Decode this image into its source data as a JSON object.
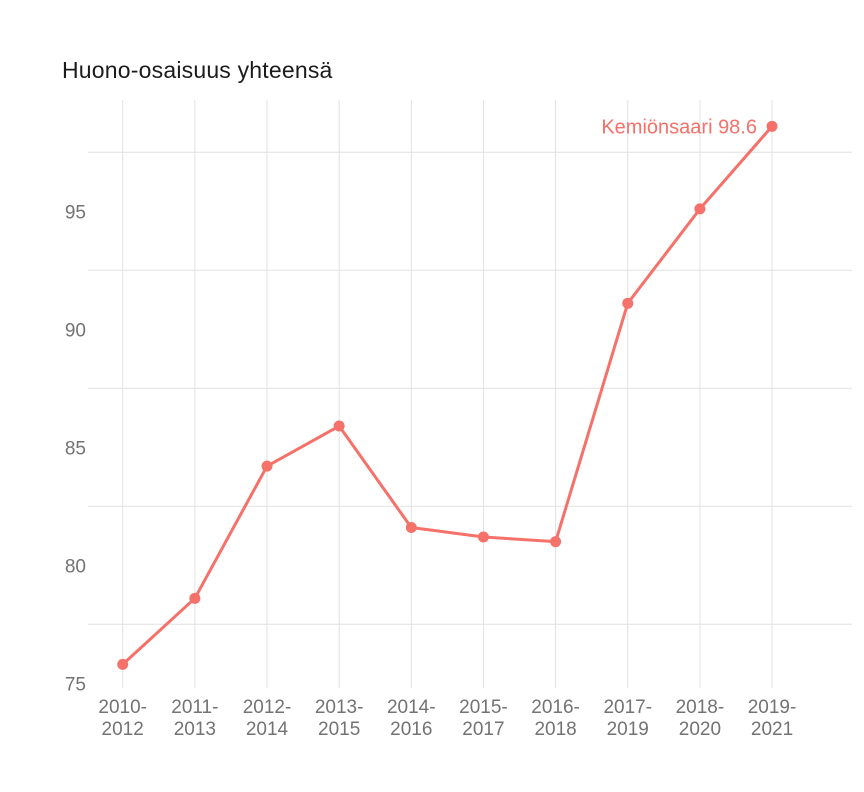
{
  "page": {
    "background": "#ffffff"
  },
  "chart_data": {
    "type": "line",
    "title": "Huono-osaisuus yhteensä",
    "categories": [
      "2010-2012",
      "2011-2013",
      "2012-2014",
      "2013-2015",
      "2014-2016",
      "2015-2017",
      "2016-2018",
      "2017-2019",
      "2018-2020",
      "2019-2021"
    ],
    "series": [
      {
        "name": "Kemiönsaari",
        "values": [
          75.8,
          78.6,
          84.2,
          85.9,
          81.6,
          81.2,
          81.0,
          91.1,
          95.1,
          98.6
        ]
      }
    ],
    "xlabel": "",
    "ylabel": "",
    "yticks": [
      75,
      80,
      85,
      90,
      95
    ],
    "gridlines_y": [
      77.5,
      82.5,
      87.5,
      92.5,
      97.5
    ],
    "ylim": [
      74.8,
      99.8
    ],
    "grid": true,
    "legend_position": "none",
    "annotation": {
      "text": "Kemiönsaari 98.6",
      "series": "Kemiönsaari",
      "value": "98.6"
    },
    "colors": {
      "line": "#f5716a",
      "point": "#f5716a",
      "annotation_text": "#f5716a",
      "gridline": "#e2e2e2",
      "tick_text": "#737373",
      "title_text": "#1b1b1b"
    }
  }
}
